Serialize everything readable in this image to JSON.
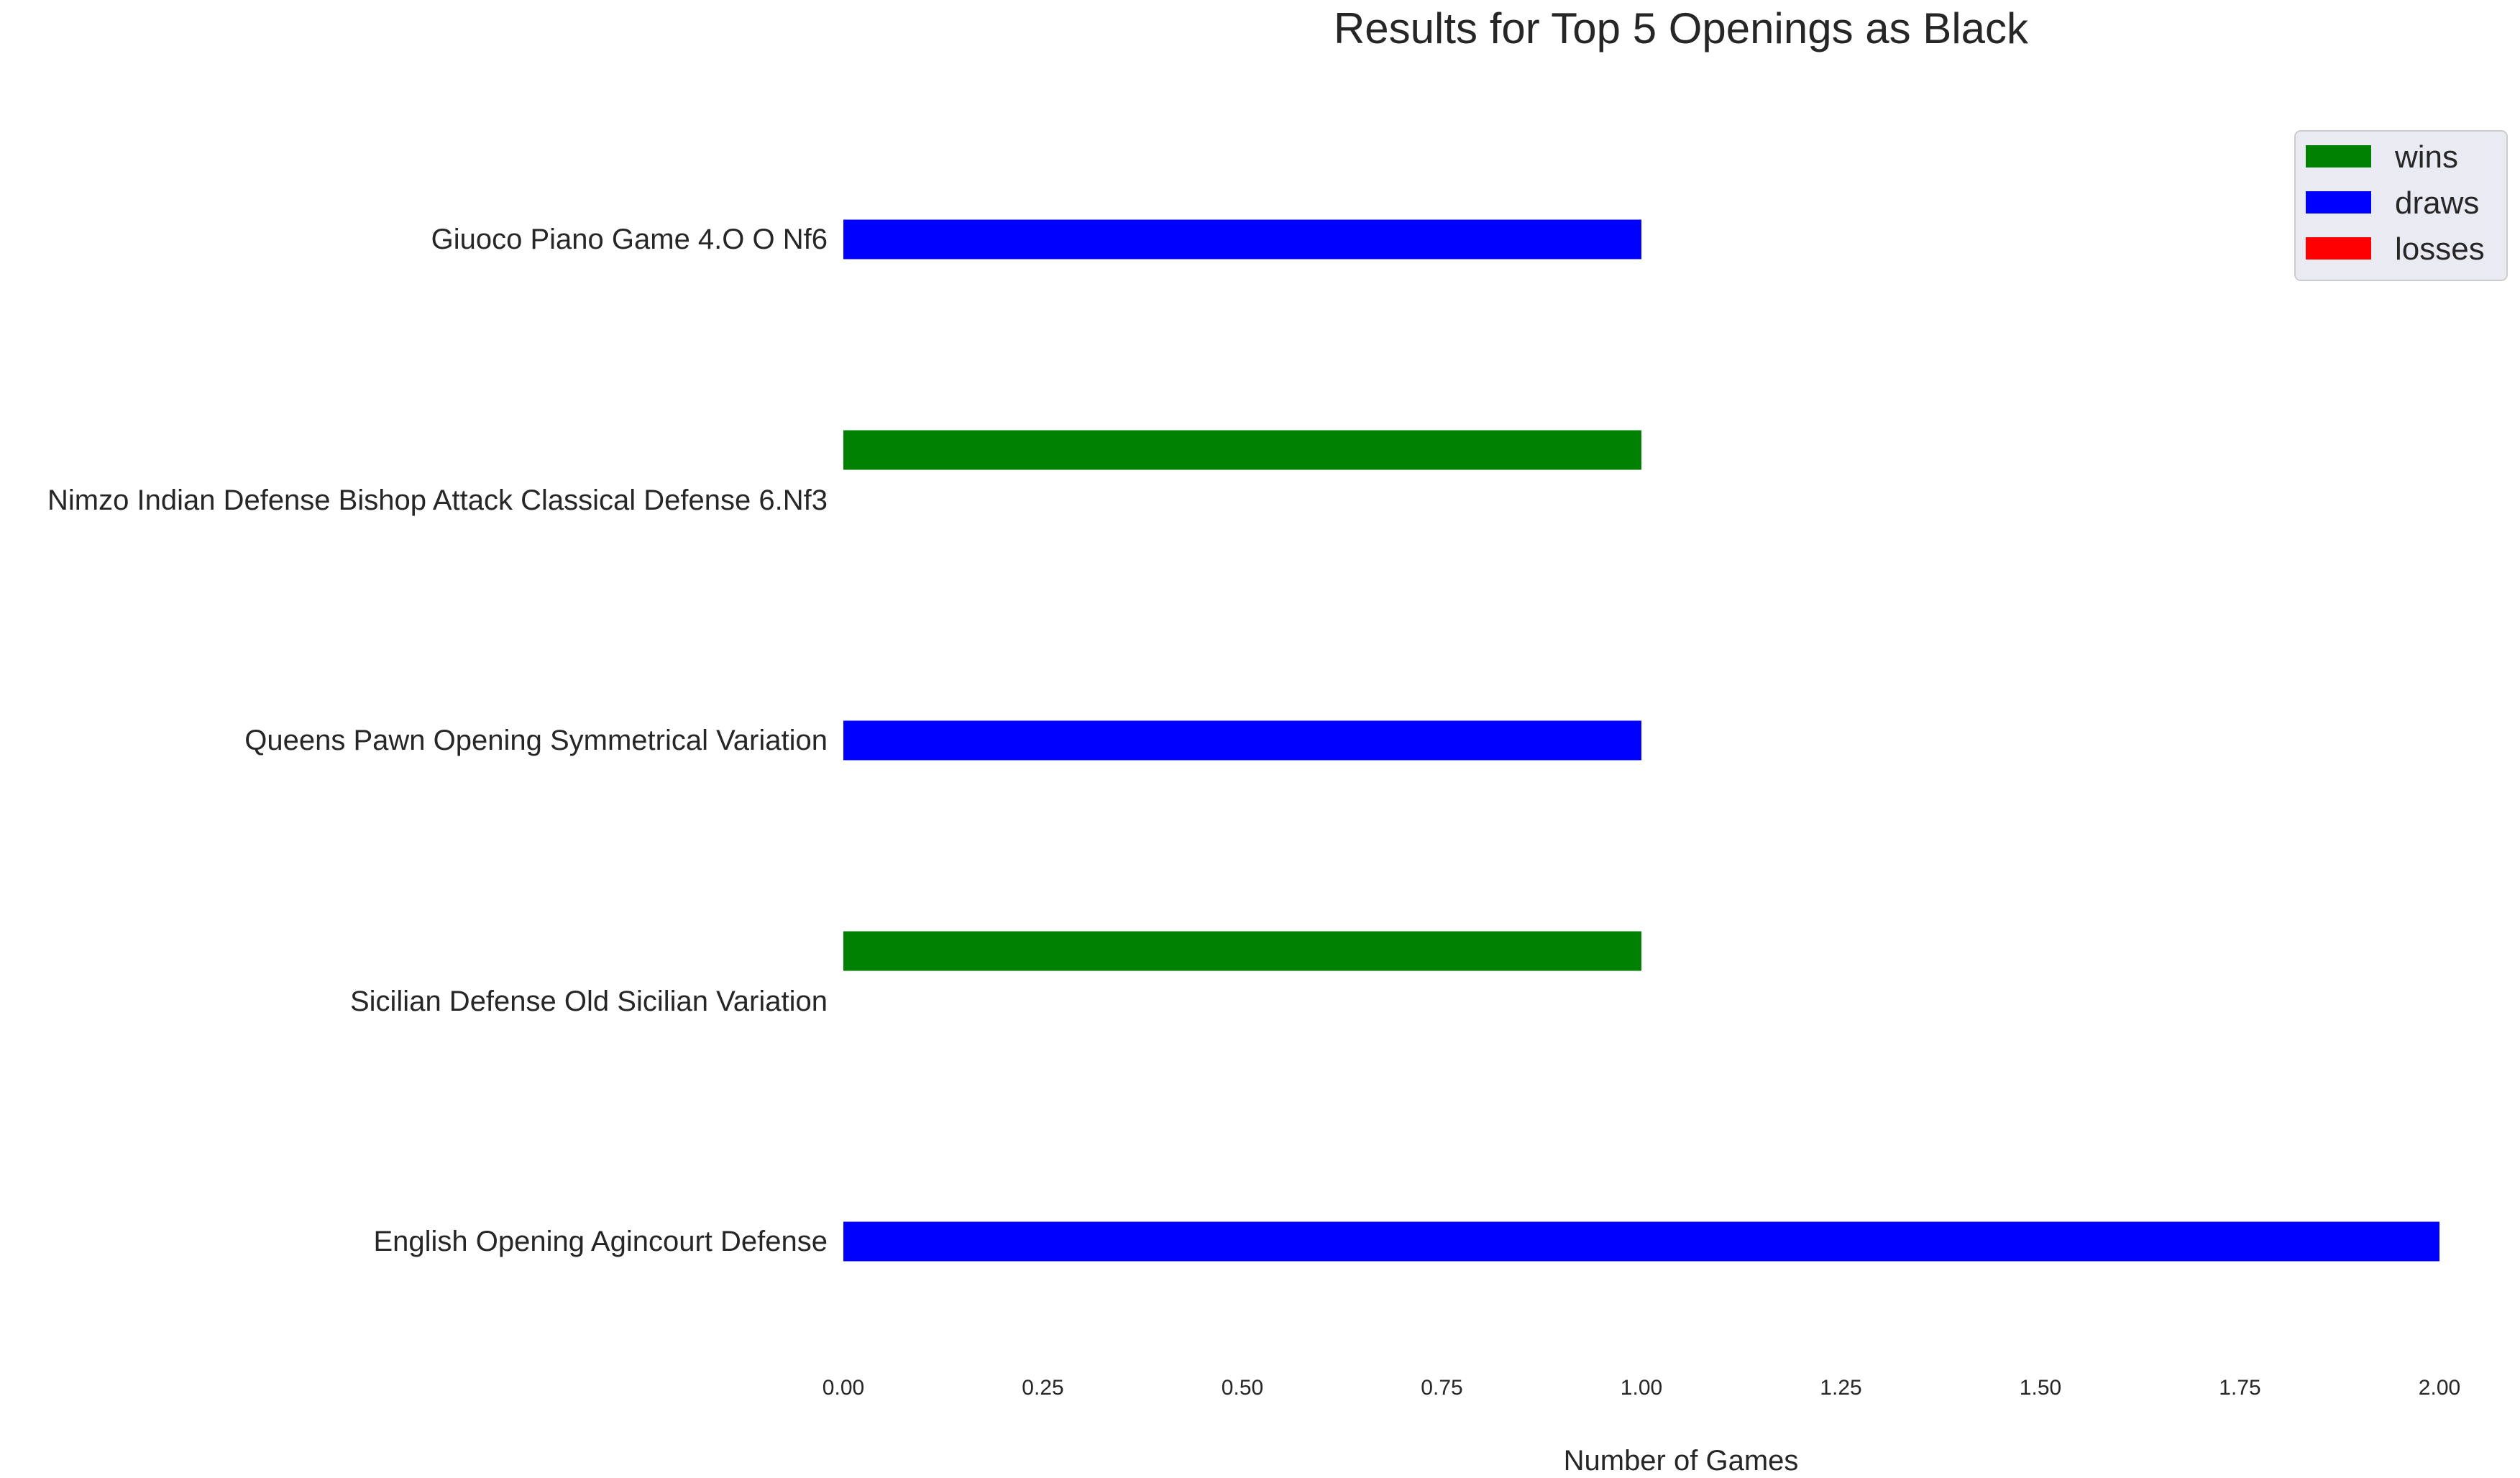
{
  "chart_data": {
    "type": "bar",
    "orientation": "horizontal",
    "title": "Results for Top 5 Openings as Black",
    "xlabel": "Number of Games",
    "ylabel": "",
    "xlim": [
      0,
      2
    ],
    "xticks": [
      "0.00",
      "0.25",
      "0.50",
      "0.75",
      "1.00",
      "1.25",
      "1.50",
      "1.75",
      "2.00"
    ],
    "grid": false,
    "legend_position": "top-right",
    "categories": [
      "English Opening Agincourt Defense",
      "Sicilian Defense Old Sicilian Variation",
      "Queens Pawn Opening Symmetrical Variation",
      "Nimzo Indian Defense Bishop Attack Classical Defense 6.Nf3",
      "Giuoco Piano Game 4.O O Nf6"
    ],
    "series": [
      {
        "name": "wins",
        "color": "#008000",
        "values": [
          0,
          1,
          0,
          1,
          0
        ]
      },
      {
        "name": "draws",
        "color": "#0000ff",
        "values": [
          2,
          0,
          1,
          0,
          1
        ]
      },
      {
        "name": "losses",
        "color": "#ff0000",
        "values": [
          0,
          0,
          0,
          0,
          0
        ]
      }
    ]
  }
}
